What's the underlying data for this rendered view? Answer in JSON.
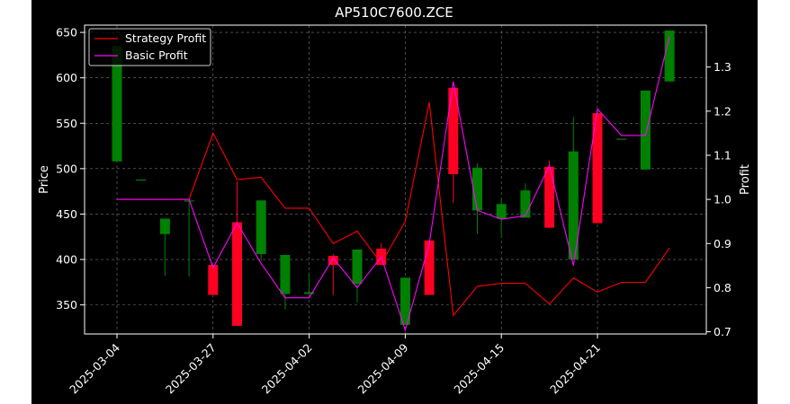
{
  "chart_data": {
    "type": "candlestick+line",
    "title": "AP510C7600.ZCE",
    "ylabel_left": "Price",
    "ylabel_right": "Profit",
    "xlabel": "",
    "x_tick_labels": [
      "2025-03-04",
      "2025-03-27",
      "2025-04-02",
      "2025-04-09",
      "2025-04-15",
      "2025-04-21"
    ],
    "x_tick_index": [
      0,
      4,
      8,
      12,
      16,
      20
    ],
    "ylim_left": [
      318,
      658
    ],
    "yticks_left": [
      350,
      400,
      450,
      500,
      550,
      600,
      650
    ],
    "ylim_right": [
      0.695,
      1.395
    ],
    "yticks_right": [
      0.7,
      0.8,
      0.9,
      1.0,
      1.1,
      1.2,
      1.3
    ],
    "grid": true,
    "legend_position": "upper-left",
    "colors": {
      "up": "#008000",
      "down": "#ff0022",
      "strategy": "#ff0000",
      "basic": "#ff00ff",
      "grid": "#777777"
    },
    "candles": [
      {
        "o": 508,
        "h": 635,
        "l": 508,
        "c": 635
      },
      {
        "o": 488,
        "h": 488,
        "l": 488,
        "c": 488
      },
      {
        "o": 428,
        "h": 445,
        "l": 382,
        "c": 445
      },
      {
        "o": 465,
        "h": 465,
        "l": 381,
        "c": 465
      },
      {
        "o": 394,
        "h": 394,
        "l": 361,
        "c": 361
      },
      {
        "o": 441,
        "h": 486,
        "l": 327,
        "c": 327
      },
      {
        "o": 406,
        "h": 465,
        "l": 398,
        "c": 465
      },
      {
        "o": 362,
        "h": 405,
        "l": 345,
        "c": 405
      },
      {
        "o": 362,
        "h": 385,
        "l": 362,
        "c": 364
      },
      {
        "o": 404,
        "h": 406,
        "l": 361,
        "c": 394
      },
      {
        "o": 373,
        "h": 411,
        "l": 353,
        "c": 411
      },
      {
        "o": 412,
        "h": 418,
        "l": 394,
        "c": 394
      },
      {
        "o": 328,
        "h": 380,
        "l": 328,
        "c": 380
      },
      {
        "o": 421,
        "h": 421,
        "l": 361,
        "c": 361
      },
      {
        "o": 589,
        "h": 589,
        "l": 462,
        "c": 494
      },
      {
        "o": 454,
        "h": 506,
        "l": 428,
        "c": 501
      },
      {
        "o": 445,
        "h": 468,
        "l": 424,
        "c": 461
      },
      {
        "o": 446,
        "h": 484,
        "l": 446,
        "c": 476
      },
      {
        "o": 502,
        "h": 509,
        "l": 435,
        "c": 435
      },
      {
        "o": 400,
        "h": 557,
        "l": 400,
        "c": 519
      },
      {
        "o": 561,
        "h": 561,
        "l": 440,
        "c": 440
      },
      {
        "o": 533,
        "h": 533,
        "l": 533,
        "c": 533
      },
      {
        "o": 499,
        "h": 586,
        "l": 499,
        "c": 586
      },
      {
        "o": 596,
        "h": 652,
        "l": 596,
        "c": 652
      }
    ],
    "series": [
      {
        "name": "Strategy Profit",
        "values": [
          1.0,
          1.0,
          1.0,
          1.0,
          1.15,
          1.045,
          1.05,
          0.98,
          0.98,
          0.9,
          0.928,
          0.855,
          0.95,
          1.22,
          0.737,
          0.803,
          0.81,
          0.81,
          0.763,
          0.822,
          0.79,
          0.812,
          0.812,
          0.89
        ]
      },
      {
        "name": "Basic Profit",
        "values": [
          1.0,
          1.0,
          1.0,
          1.0,
          0.845,
          0.947,
          0.855,
          0.777,
          0.777,
          0.867,
          0.8,
          0.87,
          0.704,
          0.9,
          1.267,
          0.975,
          0.955,
          0.963,
          1.077,
          0.85,
          1.205,
          1.145,
          1.145,
          1.37
        ]
      }
    ]
  }
}
